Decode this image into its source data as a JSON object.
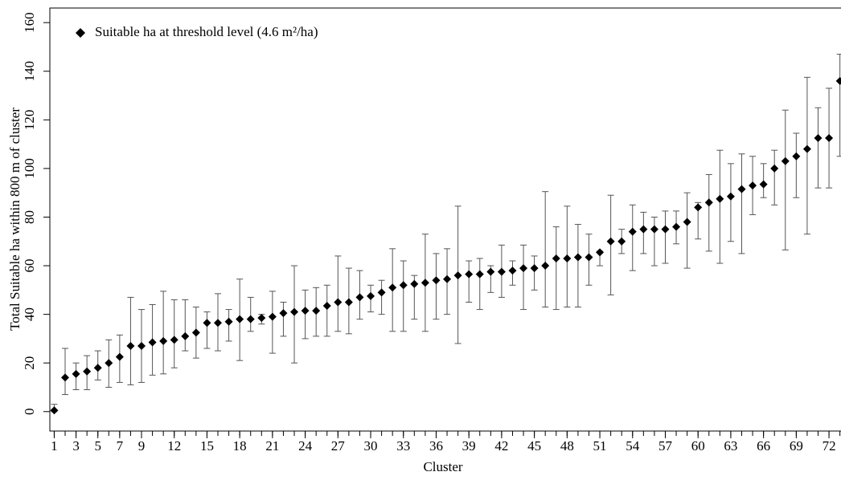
{
  "chart_data": {
    "type": "scatter",
    "x_label": "Cluster",
    "y_label": "Total Suitable ha within 800 m of cluster",
    "x": [
      1,
      2,
      3,
      4,
      5,
      6,
      7,
      8,
      9,
      10,
      11,
      12,
      13,
      14,
      15,
      16,
      17,
      18,
      19,
      20,
      21,
      22,
      23,
      24,
      25,
      26,
      27,
      28,
      29,
      30,
      31,
      32,
      33,
      34,
      35,
      36,
      37,
      38,
      39,
      40,
      41,
      42,
      43,
      44,
      45,
      46,
      47,
      48,
      49,
      50,
      51,
      52,
      53,
      54,
      55,
      56,
      57,
      58,
      59,
      60,
      61,
      62,
      63,
      64,
      65,
      66,
      67,
      68,
      69,
      70,
      71,
      72,
      73
    ],
    "series": [
      {
        "name": "Suitable ha at threshold level (4.6 m²/ha)",
        "color": "#000000",
        "values": [
          0.5,
          14,
          15.5,
          16.5,
          18,
          20,
          22.5,
          27,
          27,
          28.5,
          29,
          29.5,
          31,
          32.5,
          36.5,
          36.5,
          37,
          38,
          38,
          38.5,
          39,
          40.5,
          41,
          41.5,
          41.5,
          43.5,
          45,
          45,
          47,
          47.5,
          49,
          51,
          52,
          52.5,
          53,
          54,
          54.5,
          56,
          56.5,
          56.5,
          57.5,
          57.5,
          58,
          59,
          59,
          60,
          63,
          63,
          63.5,
          63.5,
          65.5,
          70,
          70,
          74,
          75,
          75,
          75,
          76,
          78,
          84,
          86,
          87.5,
          88.5,
          91.5,
          93,
          93.5,
          100,
          103,
          105,
          108,
          112.5,
          112.5,
          136
        ],
        "lower": [
          0,
          7,
          9,
          9,
          13,
          10,
          12,
          11,
          12,
          15,
          15.5,
          18,
          25,
          22,
          26,
          25,
          29,
          21,
          33,
          36,
          24,
          31,
          20,
          30,
          31,
          31,
          33,
          32,
          38,
          41,
          40,
          33,
          33,
          38,
          33,
          38,
          40,
          28,
          45,
          42,
          49,
          47,
          52,
          42,
          50,
          43,
          42,
          43,
          43,
          52,
          60,
          48,
          65,
          58,
          65,
          60,
          61,
          69,
          59,
          71,
          66,
          61,
          70,
          65,
          81,
          88,
          85,
          66.5,
          88,
          73,
          92,
          92,
          105
        ],
        "upper": [
          3,
          26,
          20,
          23,
          25,
          29.5,
          31.5,
          47,
          42,
          44,
          49.5,
          46,
          46,
          43,
          41,
          48.5,
          42,
          54.5,
          47,
          40,
          49.5,
          45,
          60,
          50,
          51,
          52,
          64,
          59,
          58,
          52,
          54,
          67,
          62,
          56,
          73,
          65,
          67,
          84.5,
          62,
          63,
          60,
          68.5,
          62,
          68.5,
          64,
          90.5,
          76,
          84.5,
          77,
          73,
          66,
          89,
          75,
          85,
          82,
          80,
          82.5,
          82.5,
          90,
          86,
          97.5,
          107.5,
          102,
          106,
          105,
          102,
          107.5,
          124,
          114.5,
          137.5,
          125,
          133,
          147
        ]
      }
    ],
    "xlim": [
      0.6,
      73.1
    ],
    "xticks": [
      1,
      3,
      5,
      7,
      9,
      12,
      15,
      18,
      21,
      24,
      27,
      30,
      33,
      36,
      39,
      42,
      45,
      48,
      51,
      54,
      57,
      60,
      63,
      66,
      69,
      72
    ],
    "ylim": [
      -8,
      166
    ],
    "yticks": [
      0,
      20,
      40,
      60,
      80,
      100,
      120,
      140,
      160
    ],
    "legend": "upper-left",
    "minor_x_ticks": true
  }
}
